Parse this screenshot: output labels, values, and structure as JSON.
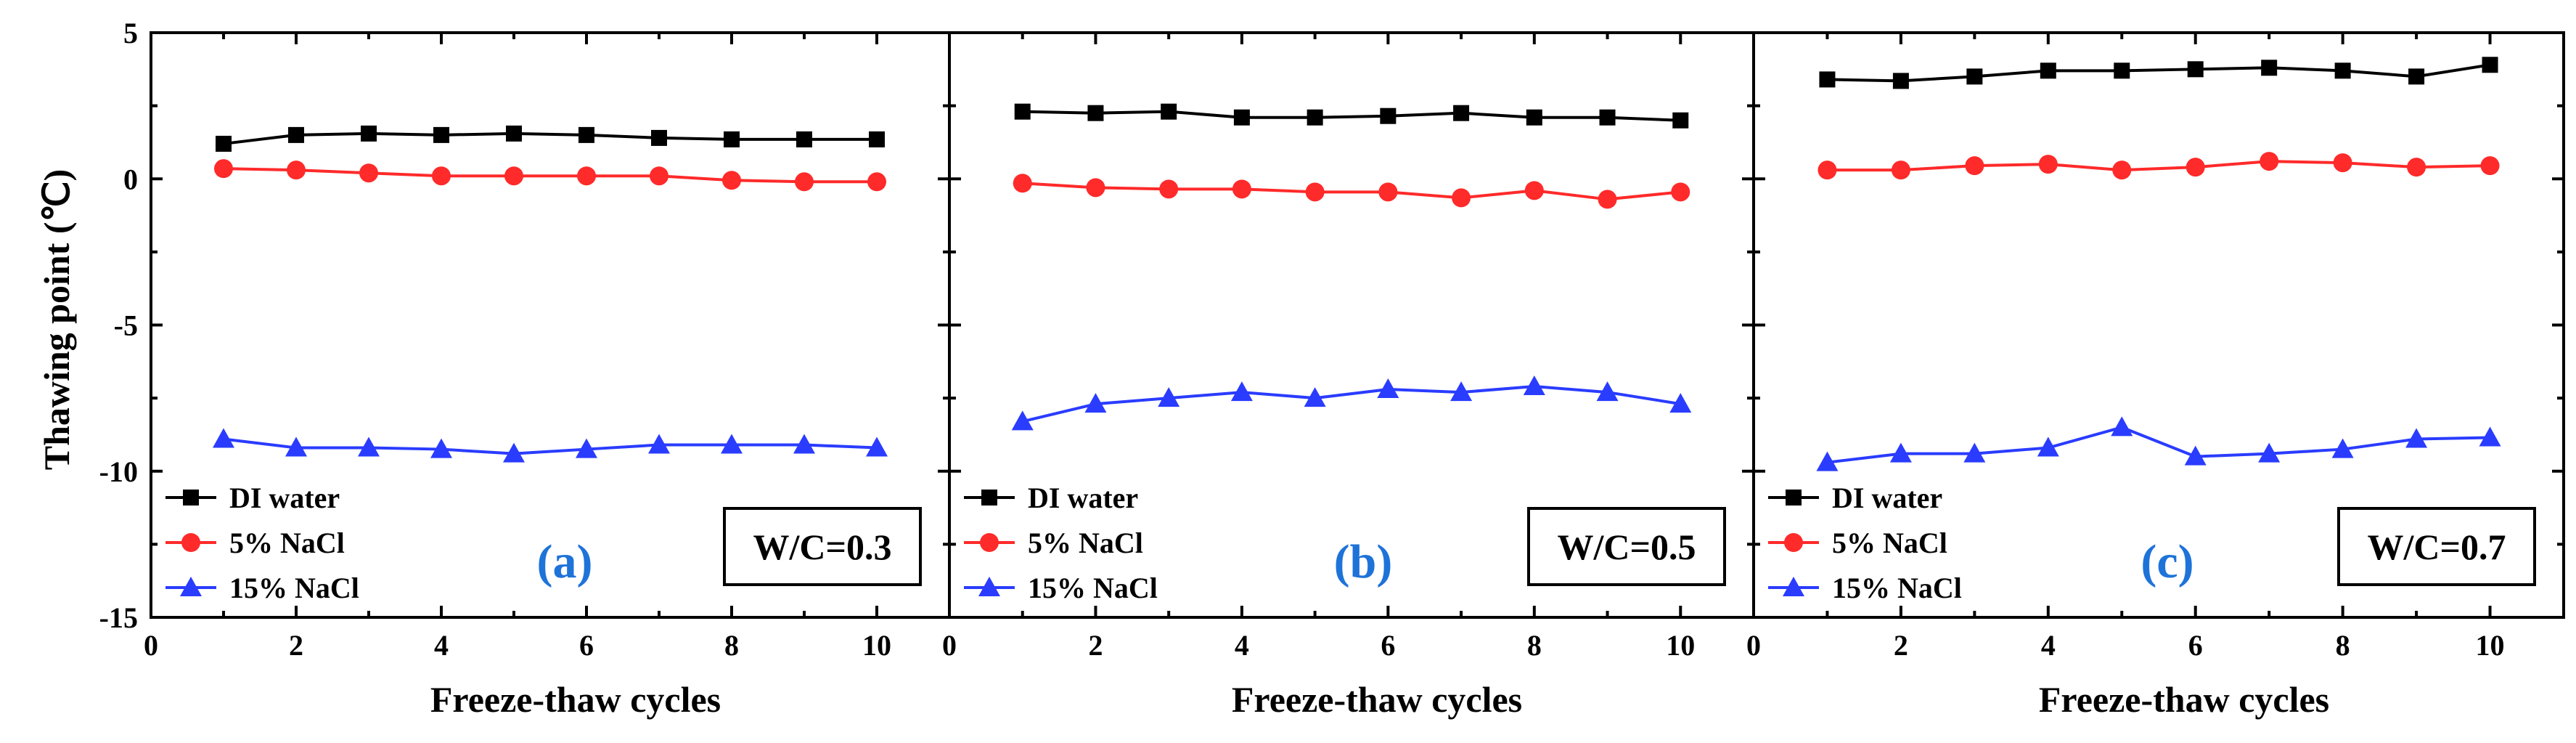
{
  "y_axis_title": "Thawing point (℃)",
  "chart_data": [
    {
      "type": "line",
      "panel_label": "(a)",
      "annotation": "W/C=0.3",
      "title": "",
      "xlabel": "Freeze-thaw cycles",
      "ylabel": "Thawing point (℃)",
      "xlim": [
        0,
        11
      ],
      "ylim": [
        -15,
        5
      ],
      "xticks": [
        0,
        2,
        4,
        6,
        8,
        10
      ],
      "yticks": [
        5,
        0,
        -5,
        -10,
        -15
      ],
      "legend_position": "bottom-left",
      "x": [
        1,
        2,
        3,
        4,
        5,
        6,
        7,
        8,
        9,
        10
      ],
      "series": [
        {
          "name": "DI water",
          "color": "#000000",
          "marker": "square",
          "values": [
            1.2,
            1.5,
            1.55,
            1.5,
            1.55,
            1.5,
            1.4,
            1.35,
            1.35,
            1.35
          ]
        },
        {
          "name": "5% NaCl",
          "color": "#ff2a2a",
          "marker": "circle",
          "values": [
            0.35,
            0.3,
            0.2,
            0.1,
            0.1,
            0.1,
            0.1,
            -0.05,
            -0.1,
            -0.1
          ]
        },
        {
          "name": "15% NaCl",
          "color": "#2a3cff",
          "marker": "triangle",
          "values": [
            -8.9,
            -9.2,
            -9.2,
            -9.25,
            -9.4,
            -9.25,
            -9.1,
            -9.1,
            -9.1,
            -9.2
          ]
        }
      ]
    },
    {
      "type": "line",
      "panel_label": "(b)",
      "annotation": "W/C=0.5",
      "title": "",
      "xlabel": "Freeze-thaw cycles",
      "ylabel": "",
      "xlim": [
        0,
        11
      ],
      "ylim": [
        -15,
        5
      ],
      "xticks": [
        0,
        2,
        4,
        6,
        8,
        10
      ],
      "yticks": [],
      "legend_position": "bottom-left",
      "x": [
        1,
        2,
        3,
        4,
        5,
        6,
        7,
        8,
        9,
        10
      ],
      "series": [
        {
          "name": "DI water",
          "color": "#000000",
          "marker": "square",
          "values": [
            2.3,
            2.25,
            2.3,
            2.1,
            2.1,
            2.15,
            2.25,
            2.1,
            2.1,
            2.0
          ]
        },
        {
          "name": "5% NaCl",
          "color": "#ff2a2a",
          "marker": "circle",
          "values": [
            -0.15,
            -0.3,
            -0.35,
            -0.35,
            -0.45,
            -0.45,
            -0.65,
            -0.4,
            -0.7,
            -0.45
          ]
        },
        {
          "name": "15% NaCl",
          "color": "#2a3cff",
          "marker": "triangle",
          "values": [
            -8.3,
            -7.7,
            -7.5,
            -7.3,
            -7.5,
            -7.2,
            -7.3,
            -7.1,
            -7.3,
            -7.7
          ]
        }
      ]
    },
    {
      "type": "line",
      "panel_label": "(c)",
      "annotation": "W/C=0.7",
      "title": "",
      "xlabel": "Freeze-thaw cycles",
      "ylabel": "",
      "xlim": [
        0,
        11
      ],
      "ylim": [
        -15,
        5
      ],
      "xticks": [
        0,
        2,
        4,
        6,
        8,
        10
      ],
      "yticks": [],
      "legend_position": "bottom-left",
      "x": [
        1,
        2,
        3,
        4,
        5,
        6,
        7,
        8,
        9,
        10
      ],
      "series": [
        {
          "name": "DI water",
          "color": "#000000",
          "marker": "square",
          "values": [
            3.4,
            3.35,
            3.5,
            3.7,
            3.7,
            3.75,
            3.8,
            3.7,
            3.5,
            3.9
          ]
        },
        {
          "name": "5% NaCl",
          "color": "#ff2a2a",
          "marker": "circle",
          "values": [
            0.3,
            0.3,
            0.45,
            0.5,
            0.3,
            0.4,
            0.6,
            0.55,
            0.4,
            0.45
          ]
        },
        {
          "name": "15% NaCl",
          "color": "#2a3cff",
          "marker": "triangle",
          "values": [
            -9.7,
            -9.4,
            -9.4,
            -9.2,
            -8.5,
            -9.5,
            -9.4,
            -9.25,
            -8.9,
            -8.85
          ]
        }
      ]
    }
  ]
}
